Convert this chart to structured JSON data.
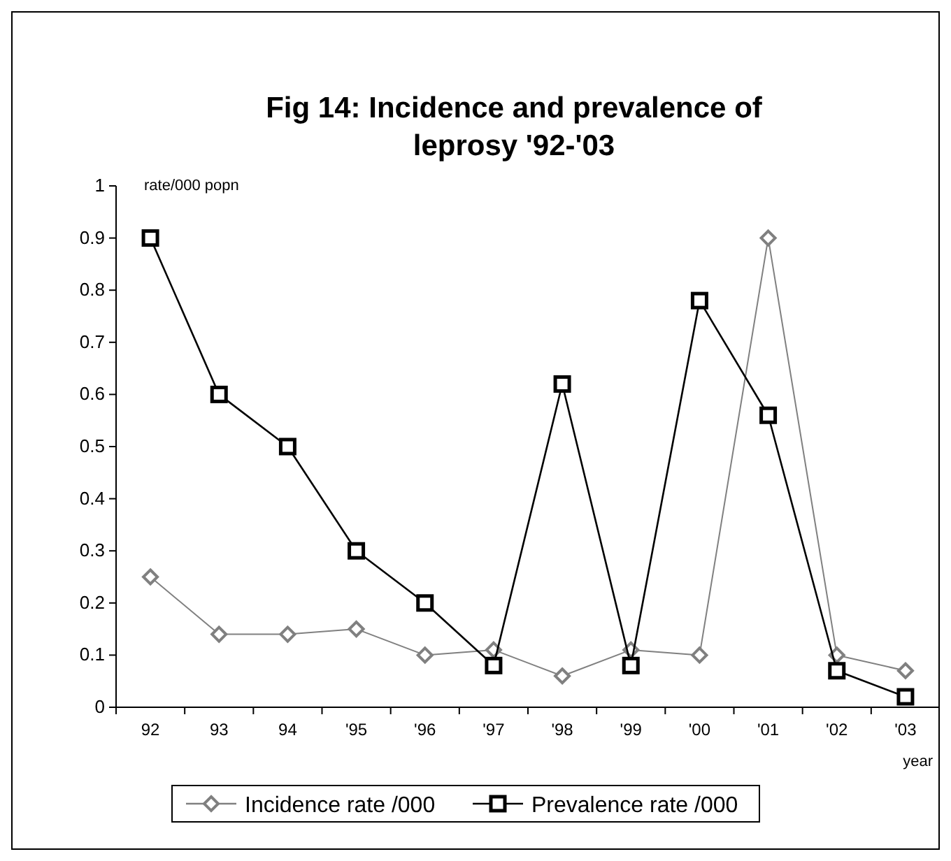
{
  "chart_data": {
    "type": "line",
    "title": "Fig 14: Incidence and prevalence of leprosy '92-'03",
    "ylabel": "rate/000 popn",
    "xlabel": "year",
    "categories": [
      "92",
      "93",
      "94",
      "'95",
      "'96",
      "'97",
      "'98",
      "'99",
      "'00",
      "'01",
      "'02",
      "'03"
    ],
    "series": [
      {
        "name": "Incidence rate /000",
        "color": "#808080",
        "marker": "diamond",
        "values": [
          0.25,
          0.14,
          0.14,
          0.15,
          0.1,
          0.11,
          0.06,
          0.11,
          0.1,
          0.9,
          0.1,
          0.07
        ]
      },
      {
        "name": "Prevalence rate /000",
        "color": "#000000",
        "marker": "square",
        "values": [
          0.9,
          0.6,
          0.5,
          0.3,
          0.2,
          0.08,
          0.62,
          0.08,
          0.78,
          0.56,
          0.07,
          0.02
        ]
      }
    ],
    "ylim": [
      0,
      1
    ],
    "yticks": [
      0,
      0.1,
      0.2,
      0.3,
      0.4,
      0.5,
      0.6,
      0.7,
      0.8,
      0.9,
      1
    ],
    "grid": false,
    "legend": "bottom",
    "line_style": "solid"
  }
}
